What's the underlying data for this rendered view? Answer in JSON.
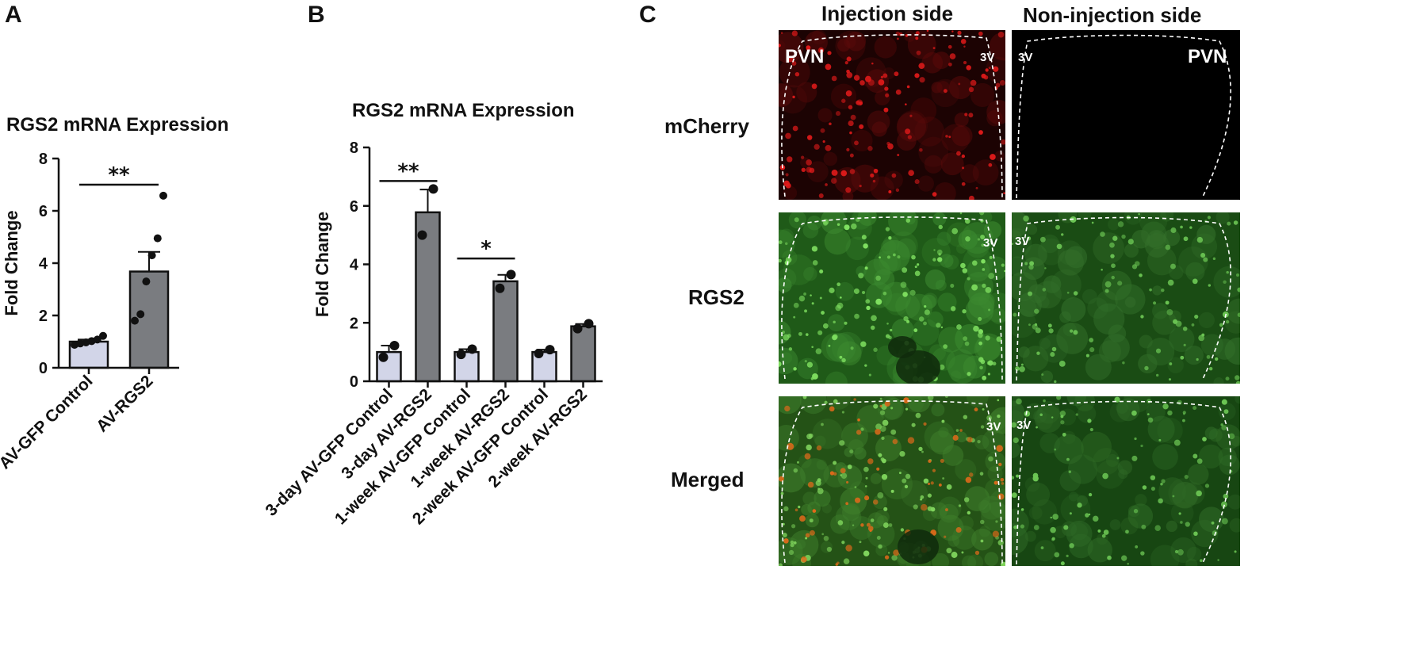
{
  "panels": {
    "a": {
      "letter": "A"
    },
    "b": {
      "letter": "B"
    },
    "c": {
      "letter": "C",
      "columns": [
        "Injection side",
        "Non-injection side"
      ],
      "rows": [
        "mCherry",
        "RGS2",
        "Merged"
      ],
      "labels": {
        "pvn": "PVN",
        "third_ventricle": "3V"
      },
      "colors": {
        "mcherry": "#cc1a1a",
        "rgs2": "#2e9a2a",
        "merged_red": "#e06a1a",
        "background_dark": "#000000"
      }
    }
  },
  "chart_data": [
    {
      "type": "bar",
      "title": "RGS2 mRNA Expression",
      "ylabel": "Fold Change",
      "xlabel": "",
      "ylim": [
        0,
        8
      ],
      "yticks": [
        0,
        2,
        4,
        6,
        8
      ],
      "categories": [
        "AV-GFP Control",
        "AV-RGS2"
      ],
      "values": [
        1.0,
        3.68
      ],
      "sem": [
        0.08,
        0.75
      ],
      "points": [
        [
          0.88,
          0.93,
          0.97,
          1.02,
          1.08,
          1.22
        ],
        [
          1.8,
          2.05,
          3.3,
          4.3,
          4.95,
          6.58
        ]
      ],
      "bar_colors": [
        "#d2d5e8",
        "#7a7c80"
      ],
      "significance": [
        {
          "from": 0,
          "to": 1,
          "y": 7.0,
          "label": "**"
        }
      ],
      "grid": false
    },
    {
      "type": "bar",
      "title": "RGS2 mRNA Expression",
      "ylabel": "Fold Change",
      "xlabel": "",
      "ylim": [
        0,
        8
      ],
      "yticks": [
        0,
        2,
        4,
        6,
        8
      ],
      "categories": [
        "3-day AV-GFP Control",
        "3-day AV-RGS2",
        "1-week AV-GFP Control",
        "1-week AV-RGS2",
        "2-week AV-GFP Control",
        "2-week AV-RGS2"
      ],
      "values": [
        1.0,
        5.78,
        1.0,
        3.42,
        1.0,
        1.88
      ],
      "sem": [
        0.22,
        0.78,
        0.1,
        0.22,
        0.08,
        0.08
      ],
      "points": [
        [
          0.82,
          1.22
        ],
        [
          5.0,
          6.58
        ],
        [
          0.92,
          1.1
        ],
        [
          3.18,
          3.65
        ],
        [
          0.95,
          1.08
        ],
        [
          1.8,
          1.97
        ]
      ],
      "bar_colors": [
        "#d2d5e8",
        "#7a7c80",
        "#d2d5e8",
        "#7a7c80",
        "#d2d5e8",
        "#7a7c80"
      ],
      "significance": [
        {
          "from": 0,
          "to": 1,
          "y": 6.85,
          "label": "**"
        },
        {
          "from": 2,
          "to": 3,
          "y": 4.2,
          "label": "*"
        }
      ],
      "grid": false
    }
  ]
}
